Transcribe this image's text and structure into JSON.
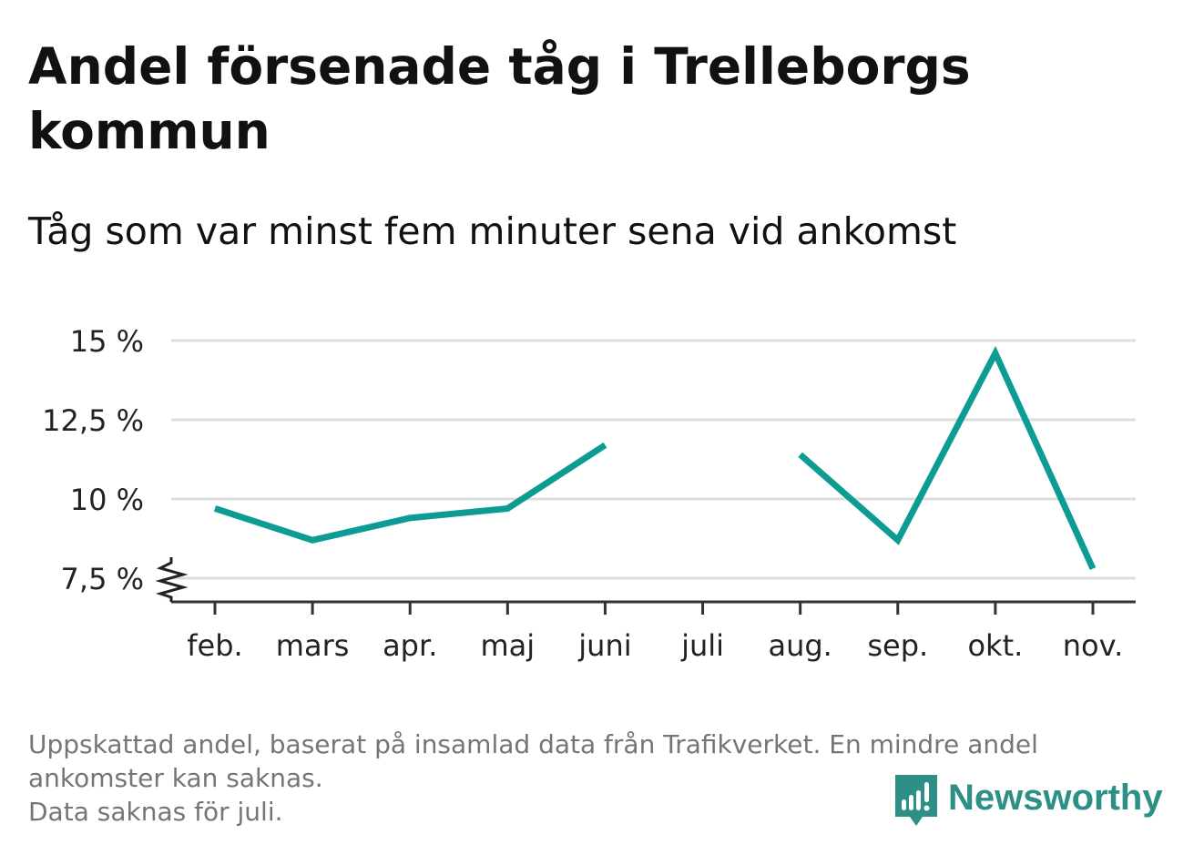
{
  "header": {
    "title": "Andel försenade tåg i Trelleborgs kommun",
    "subtitle": "Tåg som var minst fem minuter sena vid ankomst"
  },
  "chart_data": {
    "type": "line",
    "categories": [
      "feb.",
      "mars",
      "apr.",
      "maj",
      "juni",
      "juli",
      "aug.",
      "sep.",
      "okt.",
      "nov."
    ],
    "series": [
      {
        "values": [
          9.7,
          8.7,
          9.4,
          9.7,
          11.7,
          null,
          11.4,
          8.7,
          14.6,
          7.8
        ]
      }
    ],
    "y_ticks": [
      7.5,
      10,
      12.5,
      15
    ],
    "y_tick_labels": [
      "7,5 %",
      "10 %",
      "12,5 %",
      "15 %"
    ],
    "ylim": [
      6.8,
      15.2
    ],
    "y_axis_break": true,
    "grid": true,
    "line_color": "#0c9c94"
  },
  "footer": {
    "note_line1": "Uppskattad andel, baserat på insamlad data från Trafikverket. En mindre andel ankomster kan saknas.",
    "note_line2": "Data saknas för juli."
  },
  "brand": {
    "name": "Newsworthy",
    "color": "#2e8f86",
    "icon": "newsworthy-logo-icon"
  }
}
